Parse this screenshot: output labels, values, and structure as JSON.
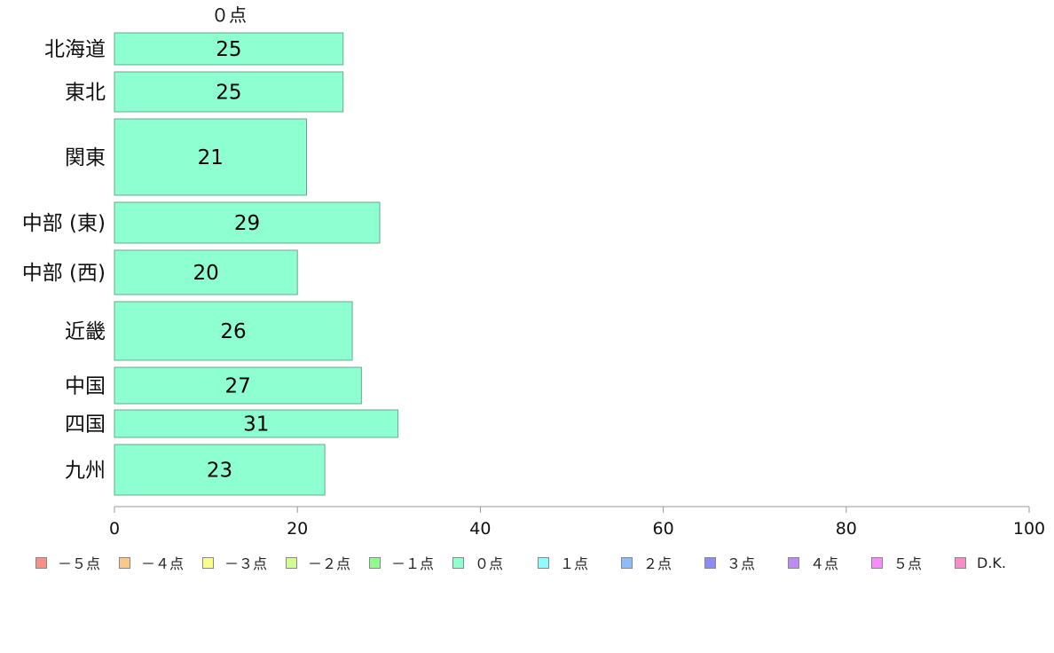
{
  "chart_data": {
    "type": "bar",
    "orientation": "horizontal",
    "series": [
      {
        "name": "０点",
        "color": "#8effd0",
        "values": [
          25,
          25,
          21,
          29,
          20,
          26,
          27,
          31,
          23
        ]
      }
    ],
    "categories": [
      "北海道",
      "東北",
      "関東",
      "中部 (東)",
      "中部 (西)",
      "近畿",
      "中国",
      "四国",
      "九州"
    ],
    "xlim": [
      0,
      100
    ],
    "xticks": [
      "0",
      "20",
      "40",
      "60",
      "80",
      "100"
    ],
    "grid": false,
    "legend_position": "bottom",
    "legend": [
      {
        "label": "－５点",
        "color": "#f89088"
      },
      {
        "label": "－４点",
        "color": "#fcc88a"
      },
      {
        "label": "－３点",
        "color": "#fcfc88"
      },
      {
        "label": "－２点",
        "color": "#d0fc90"
      },
      {
        "label": "－１点",
        "color": "#90fc90"
      },
      {
        "label": "０点",
        "color": "#8effd0"
      },
      {
        "label": "１点",
        "color": "#8cfcfc"
      },
      {
        "label": "２点",
        "color": "#8cbcfc"
      },
      {
        "label": "３点",
        "color": "#8c8cf4"
      },
      {
        "label": "４点",
        "color": "#bc8cf4"
      },
      {
        "label": "５点",
        "color": "#f88cf8"
      },
      {
        "label": "D.K.",
        "color": "#f88cc8"
      }
    ]
  }
}
